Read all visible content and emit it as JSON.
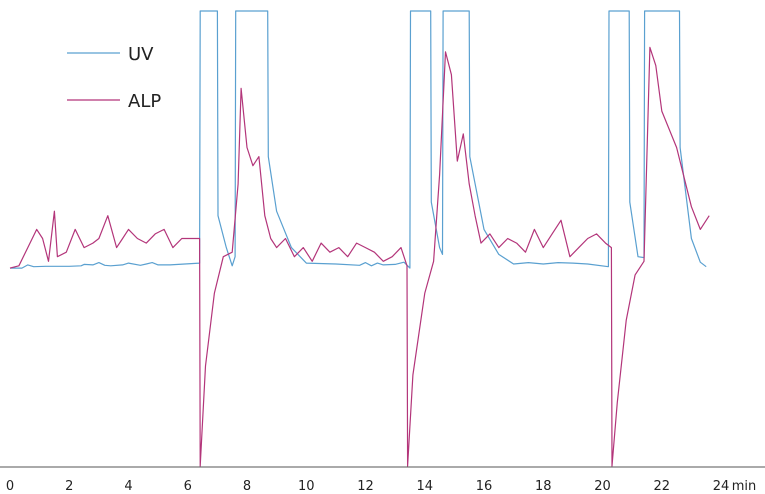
{
  "chart_data": {
    "type": "line",
    "title": "",
    "xlabel": "min",
    "ylabel": "",
    "xlim": [
      0,
      24
    ],
    "ylim": [
      0,
      100
    ],
    "x_ticks": [
      "0",
      "2",
      "4",
      "6",
      "8",
      "10",
      "12",
      "14",
      "16",
      "18",
      "20",
      "22",
      "24"
    ],
    "grid": false,
    "legend": {
      "placement": "top-left"
    },
    "series": [
      {
        "name": "UV",
        "color": "#5aa0d0",
        "x": [
          0,
          0.4,
          0.6,
          0.8,
          1.2,
          2.0,
          2.4,
          2.5,
          2.8,
          3.0,
          3.2,
          3.4,
          3.8,
          4.0,
          4.4,
          4.6,
          4.8,
          5.0,
          5.4,
          6.4,
          6.42,
          7.0,
          7.02,
          7.3,
          7.5,
          7.6,
          7.62,
          8.7,
          8.72,
          9.0,
          9.5,
          10.0,
          11.0,
          11.8,
          12.0,
          12.2,
          12.4,
          12.6,
          13.0,
          13.3,
          13.5,
          13.52,
          14.2,
          14.22,
          14.5,
          14.6,
          14.62,
          15.5,
          15.52,
          16.0,
          16.5,
          17.0,
          17.5,
          18.0,
          18.5,
          19.0,
          19.5,
          20.2,
          20.22,
          20.9,
          20.92,
          21.2,
          21.4,
          21.42,
          22.6,
          22.62,
          23.0,
          23.3,
          23.5
        ],
        "y": [
          43.5,
          43.5,
          44.2,
          43.8,
          43.9,
          43.9,
          44.0,
          44.3,
          44.2,
          44.7,
          44.1,
          44.0,
          44.2,
          44.6,
          44.1,
          44.4,
          44.7,
          44.2,
          44.2,
          44.6,
          100,
          100,
          55.0,
          48.0,
          44.0,
          46.0,
          100,
          100,
          68.0,
          56.0,
          48.0,
          44.6,
          44.4,
          44.1,
          44.7,
          44.0,
          44.6,
          44.2,
          44.3,
          44.8,
          43.5,
          100,
          100,
          58.0,
          48.0,
          46.5,
          100,
          100,
          68.0,
          52.0,
          46.5,
          44.4,
          44.7,
          44.4,
          44.7,
          44.6,
          44.4,
          43.8,
          100,
          100,
          58.0,
          46.0,
          45.8,
          100,
          100,
          70.0,
          50.0,
          44.8,
          43.8
        ]
      },
      {
        "name": "ALP",
        "color": "#b3357a",
        "x": [
          0,
          0.3,
          0.6,
          0.9,
          1.1,
          1.3,
          1.5,
          1.6,
          1.9,
          2.2,
          2.5,
          2.8,
          3.0,
          3.3,
          3.6,
          3.8,
          4.0,
          4.3,
          4.6,
          4.9,
          5.2,
          5.5,
          5.8,
          6.1,
          6.4,
          6.42,
          6.6,
          6.9,
          7.2,
          7.5,
          7.7,
          7.8,
          8.0,
          8.2,
          8.4,
          8.6,
          8.8,
          9.0,
          9.3,
          9.6,
          9.9,
          10.2,
          10.5,
          10.8,
          11.1,
          11.4,
          11.7,
          12.0,
          12.3,
          12.6,
          12.9,
          13.2,
          13.4,
          13.42,
          13.6,
          14.0,
          14.3,
          14.5,
          14.7,
          14.9,
          15.1,
          15.3,
          15.5,
          15.7,
          15.9,
          16.2,
          16.5,
          16.8,
          17.1,
          17.4,
          17.7,
          18.0,
          18.3,
          18.6,
          18.9,
          19.2,
          19.5,
          19.8,
          20.1,
          20.3,
          20.32,
          20.5,
          20.8,
          21.1,
          21.4,
          21.6,
          21.8,
          22.0,
          22.5,
          23.0,
          23.3,
          23.6
        ],
        "y": [
          43.5,
          44.0,
          48.0,
          52.0,
          50.0,
          45.0,
          56.0,
          46.0,
          47.0,
          52.0,
          48.0,
          49.0,
          50.0,
          55.0,
          48.0,
          50.0,
          52.0,
          50.0,
          49.0,
          51.0,
          52.0,
          48.0,
          50.0,
          50.0,
          50.0,
          0,
          22.0,
          38.0,
          46.0,
          47.0,
          62.0,
          83.0,
          70.0,
          66.0,
          68.0,
          55.0,
          50.0,
          48.0,
          50.0,
          46.0,
          48.0,
          45.0,
          49.0,
          47.0,
          48.0,
          46.0,
          49.0,
          48.0,
          47.0,
          45.0,
          46.0,
          48.0,
          44.0,
          0,
          20.0,
          38.0,
          45.0,
          64.0,
          91.0,
          86.0,
          67.0,
          73.0,
          62.0,
          55.0,
          49.0,
          51.0,
          48.0,
          50.0,
          49.0,
          47.0,
          52.0,
          48.0,
          51.0,
          54.0,
          46.0,
          48.0,
          50.0,
          51.0,
          49.0,
          48.0,
          0,
          14.0,
          32.0,
          42.0,
          45.0,
          92.0,
          88.0,
          78.0,
          70.0,
          57.0,
          52.0,
          55.0
        ]
      }
    ]
  }
}
